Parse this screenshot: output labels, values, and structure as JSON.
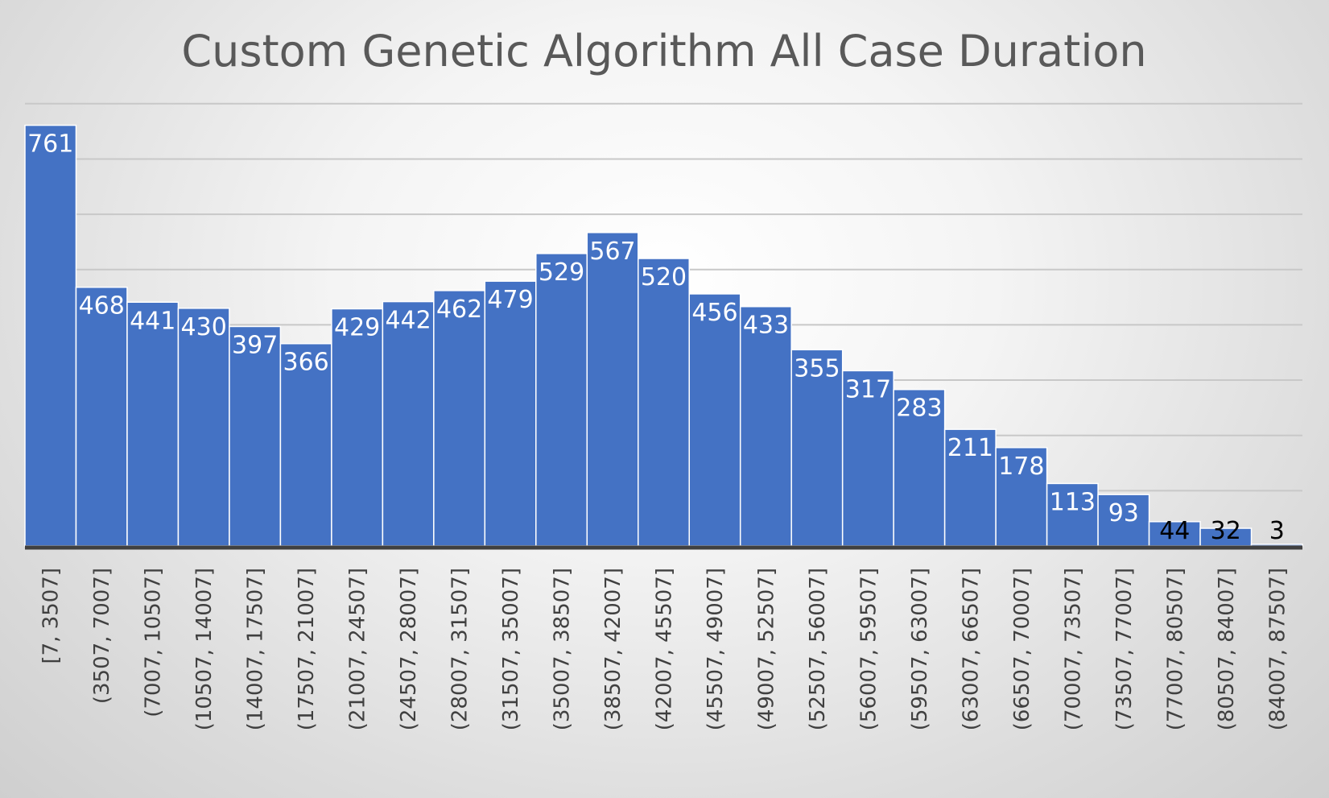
{
  "chart_data": {
    "type": "bar",
    "title": "Custom Genetic Algorithm All Case Duration",
    "xlabel": "",
    "ylabel": "",
    "categories": [
      "[7, 3507]",
      "(3507, 7007]",
      "(7007, 10507]",
      "(10507, 14007]",
      "(14007, 17507]",
      "(17507, 21007]",
      "(21007, 24507]",
      "(24507, 28007]",
      "(28007, 31507]",
      "(31507, 35007]",
      "(35007, 38507]",
      "(38507, 42007]",
      "(42007, 45507]",
      "(45507, 49007]",
      "(49007, 52507]",
      "(52507, 56007]",
      "(56007, 59507]",
      "(59507, 63007]",
      "(63007, 66507]",
      "(66507, 70007]",
      "(70007, 73507]",
      "(73507, 77007]",
      "(77007, 80507]",
      "(80507, 84007]",
      "(84007, 87507]"
    ],
    "values": [
      761,
      468,
      441,
      430,
      397,
      366,
      429,
      442,
      462,
      479,
      529,
      567,
      520,
      456,
      433,
      355,
      317,
      283,
      211,
      178,
      113,
      93,
      44,
      32,
      3
    ],
    "ylim": [
      0,
      800
    ],
    "grid": true,
    "legend": "none",
    "bar_color": "#4472C4",
    "label_color_inside": "#FFFFFF",
    "label_color_outside": "#000000"
  }
}
